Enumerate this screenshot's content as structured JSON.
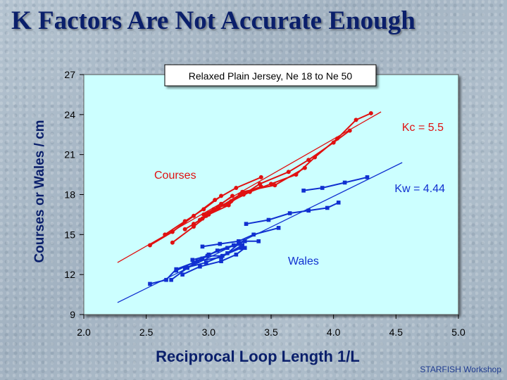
{
  "slide": {
    "title": "K Factors Are Not Accurate Enough",
    "footer": "STARFISH Workshop"
  },
  "colors": {
    "courses": "#e01010",
    "wales": "#1030d0",
    "plot_bg": "#ccffff"
  },
  "chart_data": {
    "type": "scatter",
    "title": "Relaxed Plain Jersey, Ne 18 to Ne 50",
    "xlabel": "Reciprocal Loop Length  1/L",
    "ylabel": "Courses or Wales / cm",
    "xlim": [
      2.0,
      5.0
    ],
    "ylim": [
      9,
      27
    ],
    "xticks": [
      "2.0",
      "2.5",
      "3.0",
      "3.5",
      "4.0",
      "4.5",
      "5.0"
    ],
    "yticks": [
      "9",
      "12",
      "15",
      "18",
      "21",
      "24",
      "27"
    ],
    "annotations": {
      "courses_label": "Courses",
      "wales_label": "Wales",
      "kc_label": "Kc = 5.5",
      "kw_label": "Kw = 4.44"
    },
    "series": [
      {
        "name": "Courses",
        "group": "courses",
        "lines": [
          [
            [
              2.53,
              14.2
            ],
            [
              2.71,
              15.2
            ],
            [
              2.88,
              16.4
            ],
            [
              3.05,
              17.6
            ],
            [
              3.22,
              18.5
            ],
            [
              3.42,
              19.3
            ]
          ],
          [
            [
              2.65,
              15.0
            ],
            [
              2.81,
              16.0
            ],
            [
              2.96,
              16.9
            ],
            [
              3.1,
              17.9
            ]
          ],
          [
            [
              2.71,
              14.4
            ],
            [
              2.88,
              15.6
            ],
            [
              3.0,
              16.5
            ],
            [
              3.16,
              17.2
            ],
            [
              3.27,
              18.2
            ],
            [
              3.53,
              18.7
            ],
            [
              3.77,
              20.0
            ]
          ],
          [
            [
              2.81,
              15.4
            ],
            [
              2.95,
              16.2
            ],
            [
              3.08,
              17.0
            ],
            [
              3.25,
              18.0
            ],
            [
              3.42,
              18.6
            ]
          ],
          [
            [
              2.93,
              16.1
            ],
            [
              3.0,
              16.6
            ],
            [
              3.1,
              17.3
            ],
            [
              3.19,
              17.9
            ]
          ],
          [
            [
              2.88,
              15.8
            ],
            [
              2.98,
              16.4
            ],
            [
              3.07,
              17.0
            ],
            [
              3.18,
              17.5
            ],
            [
              3.33,
              18.2
            ],
            [
              3.5,
              18.8
            ],
            [
              3.7,
              19.5
            ],
            [
              3.85,
              20.8
            ],
            [
              4.03,
              22.2
            ],
            [
              4.18,
              23.6
            ],
            [
              4.3,
              24.1
            ]
          ],
          [
            [
              2.96,
              16.5
            ],
            [
              3.04,
              16.9
            ],
            [
              3.13,
              17.2
            ],
            [
              3.28,
              18.0
            ],
            [
              3.41,
              18.8
            ],
            [
              3.64,
              19.7
            ],
            [
              3.8,
              20.6
            ],
            [
              4.0,
              21.9
            ],
            [
              4.13,
              22.8
            ]
          ]
        ]
      },
      {
        "name": "Courses fit",
        "group": "courses",
        "fit": true,
        "lines": [
          [
            [
              2.27,
              12.9
            ],
            [
              4.38,
              24.2
            ]
          ]
        ]
      },
      {
        "name": "Wales",
        "group": "wales",
        "lines": [
          [
            [
              2.53,
              11.3
            ],
            [
              2.66,
              11.6
            ],
            [
              2.74,
              12.4
            ],
            [
              2.91,
              13.0
            ],
            [
              3.1,
              13.3
            ],
            [
              3.27,
              14.2
            ]
          ],
          [
            [
              2.7,
              11.6
            ],
            [
              2.83,
              12.5
            ],
            [
              2.95,
              13.2
            ],
            [
              3.07,
              13.8
            ],
            [
              3.2,
              14.2
            ]
          ],
          [
            [
              2.74,
              12.3
            ],
            [
              2.88,
              12.9
            ],
            [
              3.0,
              13.5
            ],
            [
              3.15,
              14.0
            ],
            [
              3.29,
              14.5
            ],
            [
              3.4,
              14.5
            ]
          ],
          [
            [
              2.79,
              12.0
            ],
            [
              2.93,
              12.6
            ],
            [
              3.1,
              13.0
            ],
            [
              3.22,
              13.5
            ],
            [
              3.29,
              14.0
            ]
          ],
          [
            [
              2.81,
              12.5
            ],
            [
              2.98,
              12.9
            ],
            [
              3.15,
              13.6
            ],
            [
              3.24,
              14.3
            ]
          ],
          [
            [
              2.87,
              13.1
            ],
            [
              2.99,
              13.4
            ],
            [
              3.11,
              13.4
            ],
            [
              3.26,
              14.0
            ]
          ],
          [
            [
              2.95,
              14.1
            ],
            [
              3.09,
              14.3
            ],
            [
              3.24,
              14.5
            ],
            [
              3.36,
              15.0
            ],
            [
              3.56,
              15.5
            ]
          ],
          [
            [
              3.3,
              15.8
            ],
            [
              3.48,
              16.1
            ],
            [
              3.65,
              16.6
            ],
            [
              3.8,
              16.8
            ],
            [
              3.95,
              17.0
            ],
            [
              4.04,
              17.4
            ]
          ],
          [
            [
              3.76,
              18.3
            ],
            [
              3.91,
              18.5
            ],
            [
              4.09,
              18.9
            ],
            [
              4.27,
              19.3
            ]
          ]
        ]
      },
      {
        "name": "Wales fit",
        "group": "wales",
        "fit": true,
        "lines": [
          [
            [
              2.27,
              9.9
            ],
            [
              4.55,
              20.4
            ]
          ]
        ]
      }
    ]
  }
}
